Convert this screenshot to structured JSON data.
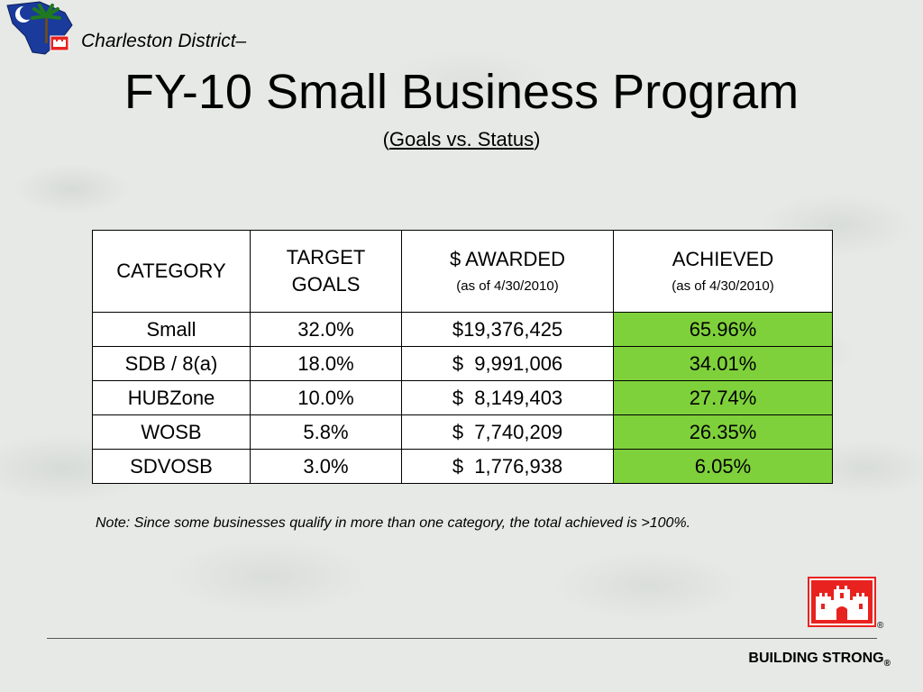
{
  "header": {
    "district": "Charleston District–",
    "title": "FY-10 Small Business Program",
    "subtitle_open": "(",
    "subtitle_link": "Goals vs. Status",
    "subtitle_close": ")"
  },
  "table": {
    "headers": [
      {
        "main": "CATEGORY",
        "sub": ""
      },
      {
        "main": "TARGET GOALS",
        "sub": ""
      },
      {
        "main": "$ AWARDED",
        "sub": "(as of 4/30/2010)"
      },
      {
        "main": "ACHIEVED",
        "sub": "(as of 4/30/2010)"
      }
    ],
    "rows": [
      {
        "category": "Small",
        "target": "32.0%",
        "awarded": "$19,376,425",
        "achieved": "65.96%"
      },
      {
        "category": "SDB / 8(a)",
        "target": "18.0%",
        "awarded": "$  9,991,006",
        "achieved": "34.01%"
      },
      {
        "category": "HUBZone",
        "target": "10.0%",
        "awarded": "$  8,149,403",
        "achieved": "27.74%"
      },
      {
        "category": "WOSB",
        "target": "5.8%",
        "awarded": "$  7,740,209",
        "achieved": "26.35%"
      },
      {
        "category": "SDVOSB",
        "target": "3.0%",
        "awarded": "$  1,776,938",
        "achieved": "6.05%"
      }
    ],
    "achieved_color": "#7fd13b"
  },
  "note": "Note:  Since some businesses qualify in more than one category, the total achieved is >100%.",
  "footer": {
    "tagline": "BUILDING STRONG",
    "registered": "®",
    "logo_icon": "castle-icon",
    "logo_color": "#e8231f"
  }
}
